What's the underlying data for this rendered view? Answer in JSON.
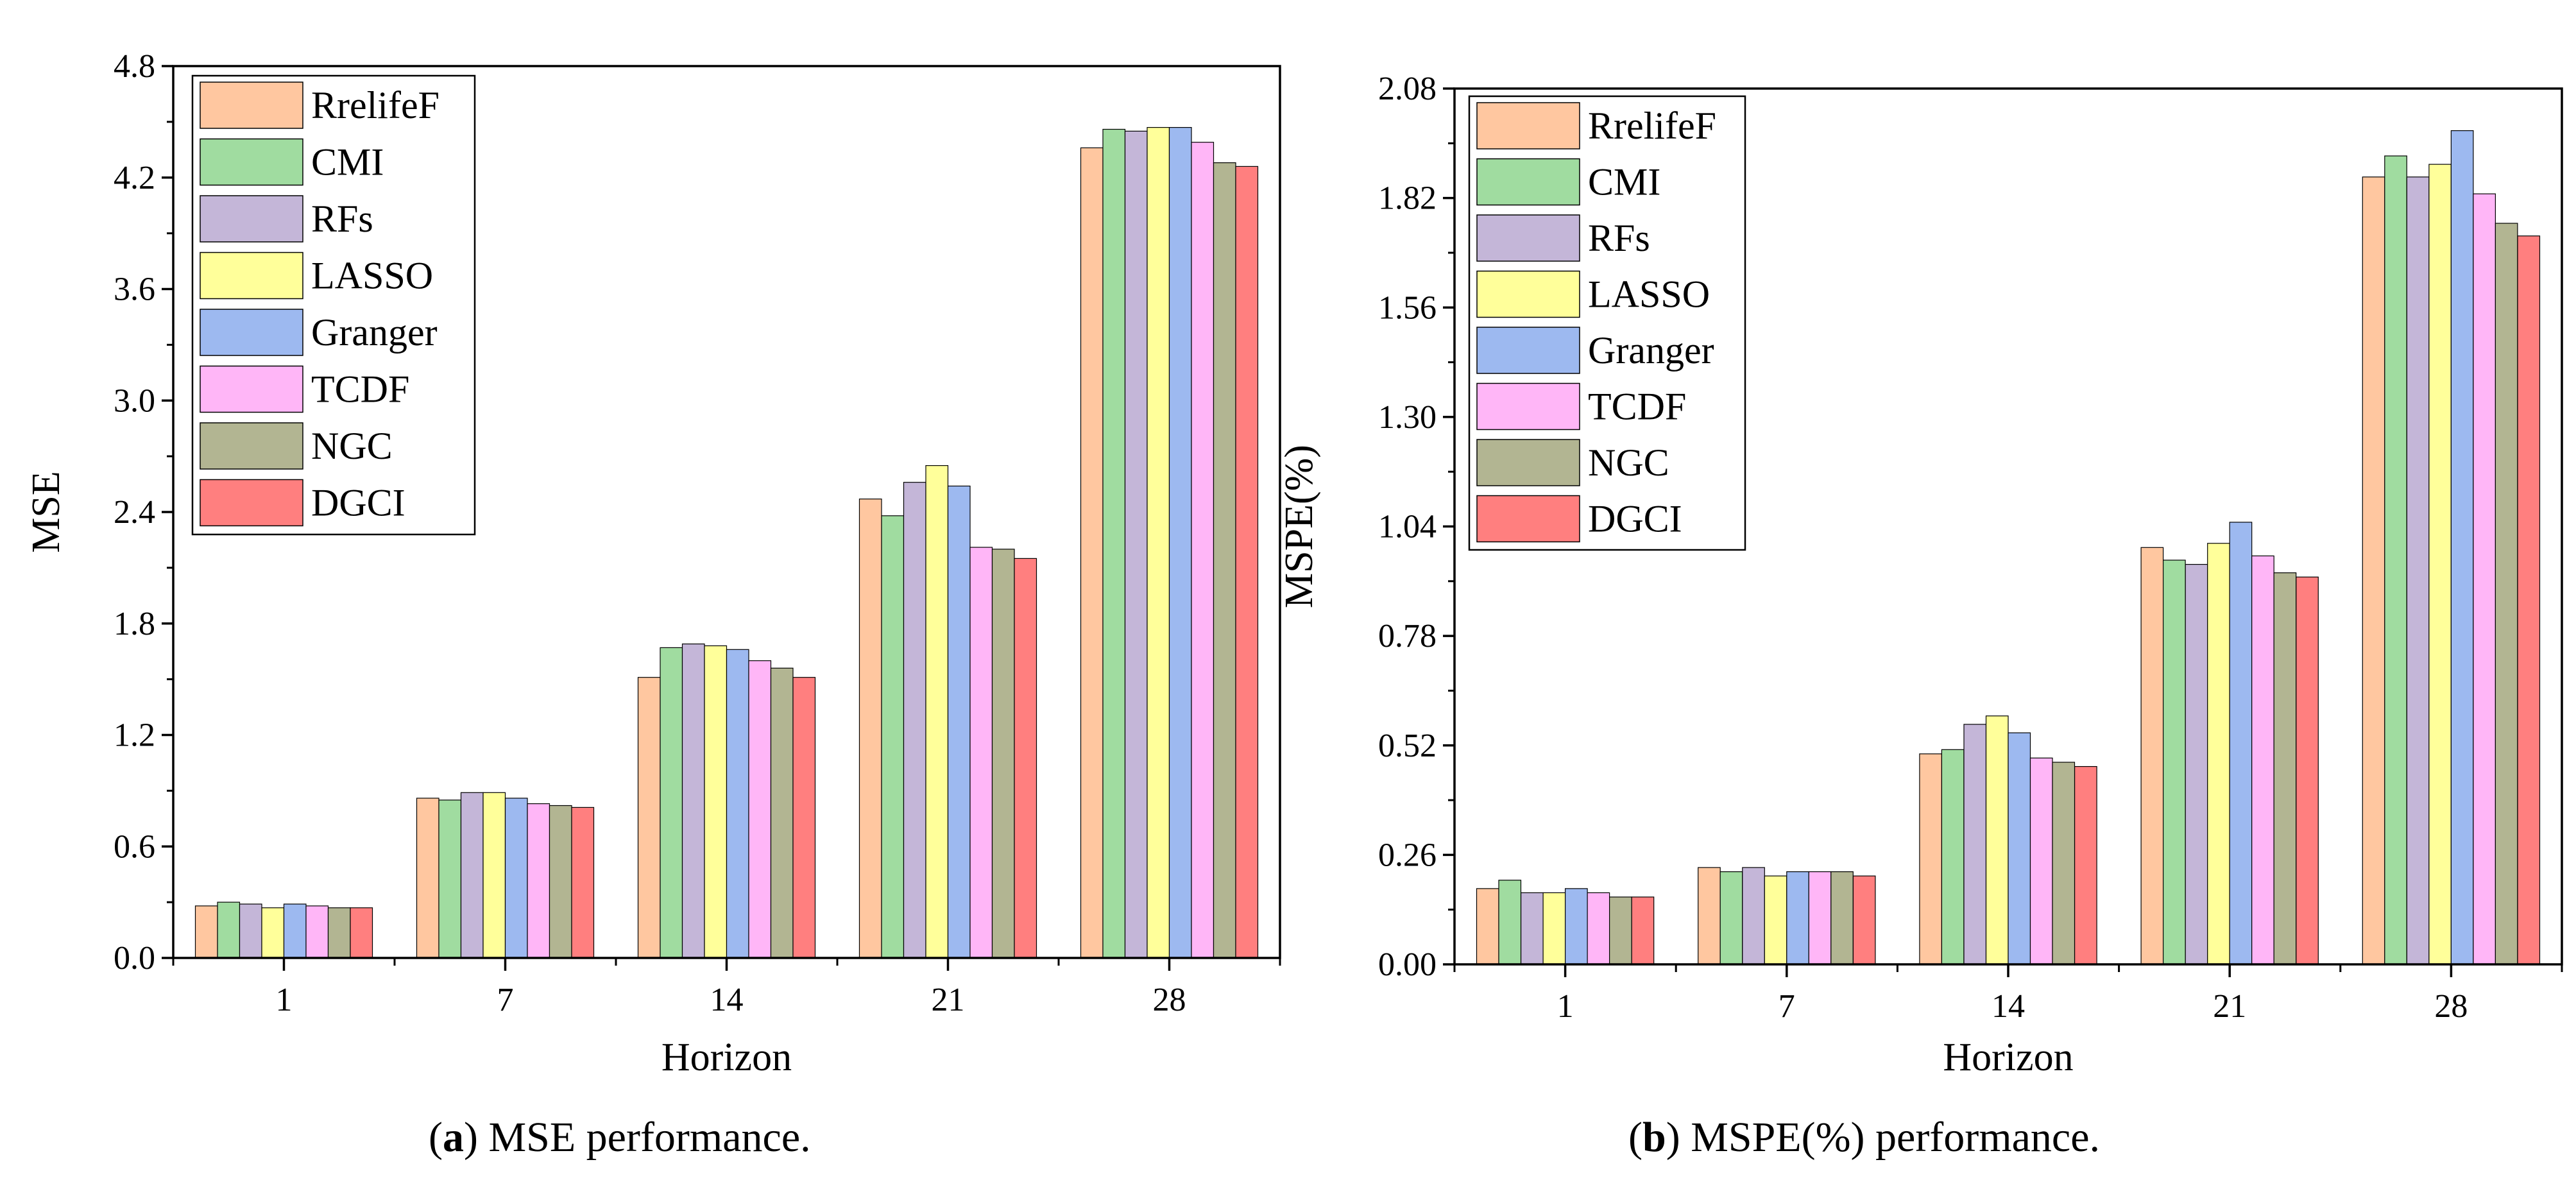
{
  "colors": {
    "RrelifeF": "#FFC7A0",
    "CMI": "#A0DCA0",
    "RFs": "#C4B6D8",
    "LASSO": "#FFFF9A",
    "Granger": "#9DB9F0",
    "TCDF": "#FFB6F7",
    "NGC": "#B2B592",
    "DGCI": "#FF7F7F"
  },
  "captions": {
    "a_letter": "a",
    "a_text": " MSE performance.",
    "b_letter": "b",
    "b_text": " MSPE(%) performance."
  },
  "chart_data": [
    {
      "type": "bar",
      "panel": "a",
      "xlabel": "Horizon",
      "ylabel": "MSE",
      "categories": [
        "1",
        "7",
        "14",
        "21",
        "28"
      ],
      "ylim": [
        0.0,
        4.8
      ],
      "yticks": [
        "0.0",
        "0.6",
        "1.2",
        "1.8",
        "2.4",
        "3.0",
        "3.6",
        "4.2",
        "4.8"
      ],
      "legend_position": "top-left",
      "series": [
        {
          "name": "RrelifeF",
          "values": [
            0.28,
            0.86,
            1.51,
            2.47,
            4.36
          ]
        },
        {
          "name": "CMI",
          "values": [
            0.3,
            0.85,
            1.67,
            2.38,
            4.46
          ]
        },
        {
          "name": "RFs",
          "values": [
            0.29,
            0.89,
            1.69,
            2.56,
            4.45
          ]
        },
        {
          "name": "LASSO",
          "values": [
            0.27,
            0.89,
            1.68,
            2.65,
            4.47
          ]
        },
        {
          "name": "Granger",
          "values": [
            0.29,
            0.86,
            1.66,
            2.54,
            4.47
          ]
        },
        {
          "name": "TCDF",
          "values": [
            0.28,
            0.83,
            1.6,
            2.21,
            4.39
          ]
        },
        {
          "name": "NGC",
          "values": [
            0.27,
            0.82,
            1.56,
            2.2,
            4.28
          ]
        },
        {
          "name": "DGCI",
          "values": [
            0.27,
            0.81,
            1.51,
            2.15,
            4.26
          ]
        }
      ]
    },
    {
      "type": "bar",
      "panel": "b",
      "xlabel": "Horizon",
      "ylabel": "MSPE(%)",
      "categories": [
        "1",
        "7",
        "14",
        "21",
        "28"
      ],
      "ylim": [
        0.0,
        2.08
      ],
      "yticks": [
        "0.00",
        "0.26",
        "0.52",
        "0.78",
        "1.04",
        "1.30",
        "1.56",
        "1.82",
        "2.08"
      ],
      "legend_position": "top-left",
      "series": [
        {
          "name": "RrelifeF",
          "values": [
            0.18,
            0.23,
            0.5,
            0.99,
            1.87
          ]
        },
        {
          "name": "CMI",
          "values": [
            0.2,
            0.22,
            0.51,
            0.96,
            1.92
          ]
        },
        {
          "name": "RFs",
          "values": [
            0.17,
            0.23,
            0.57,
            0.95,
            1.87
          ]
        },
        {
          "name": "LASSO",
          "values": [
            0.17,
            0.21,
            0.59,
            1.0,
            1.9
          ]
        },
        {
          "name": "Granger",
          "values": [
            0.18,
            0.22,
            0.55,
            1.05,
            1.98
          ]
        },
        {
          "name": "TCDF",
          "values": [
            0.17,
            0.22,
            0.49,
            0.97,
            1.83
          ]
        },
        {
          "name": "NGC",
          "values": [
            0.16,
            0.22,
            0.48,
            0.93,
            1.76
          ]
        },
        {
          "name": "DGCI",
          "values": [
            0.16,
            0.21,
            0.47,
            0.92,
            1.73
          ]
        }
      ]
    }
  ]
}
